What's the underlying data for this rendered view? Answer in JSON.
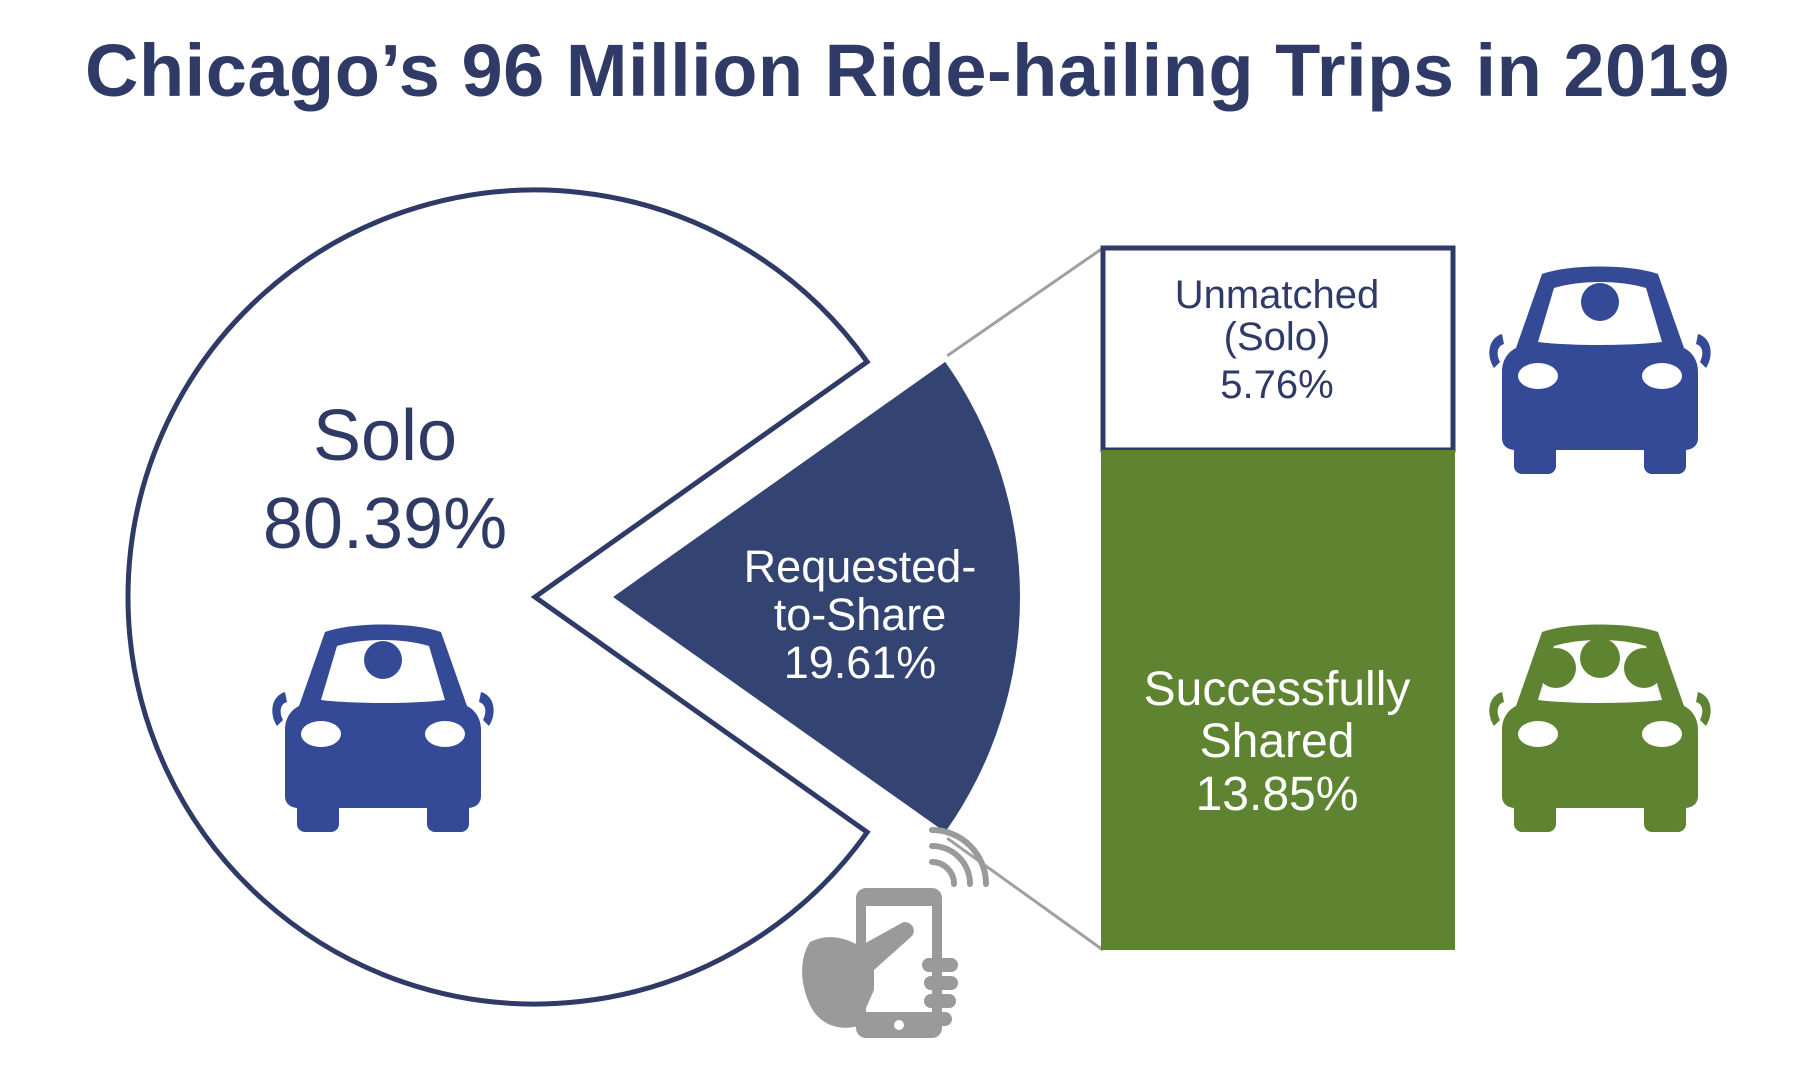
{
  "colors": {
    "navy": "#2f3b66",
    "solo_outline": "#2f3b66",
    "requested_fill": "#344472",
    "car_blue": "#344a97",
    "shared_green": "#5f8431",
    "connector_gray": "#a0a0a0",
    "phone_gray": "#9a9a9a"
  },
  "icons": [
    "car-solo-icon",
    "car-shared-icon",
    "smartphone-hand-icon"
  ],
  "chart_data": {
    "type": "pie",
    "title": "Chicago’s 96 Million Ride-hailing Trips in 2019",
    "slices": [
      {
        "label": "Solo",
        "value": 80.39,
        "value_label": "80.39%",
        "exploded": false
      },
      {
        "label_lines": [
          "Requested-",
          "to-Share"
        ],
        "value": 19.61,
        "value_label": "19.61%",
        "exploded": true
      }
    ],
    "breakdown": {
      "type": "stacked_bar",
      "parent_slice": 1,
      "segments": [
        {
          "label_lines": [
            "Unmatched",
            "(Solo)"
          ],
          "value": 5.76,
          "value_label": "5.76%"
        },
        {
          "label_lines": [
            "Successfully",
            "Shared"
          ],
          "value": 13.85,
          "value_label": "13.85%"
        }
      ]
    }
  }
}
